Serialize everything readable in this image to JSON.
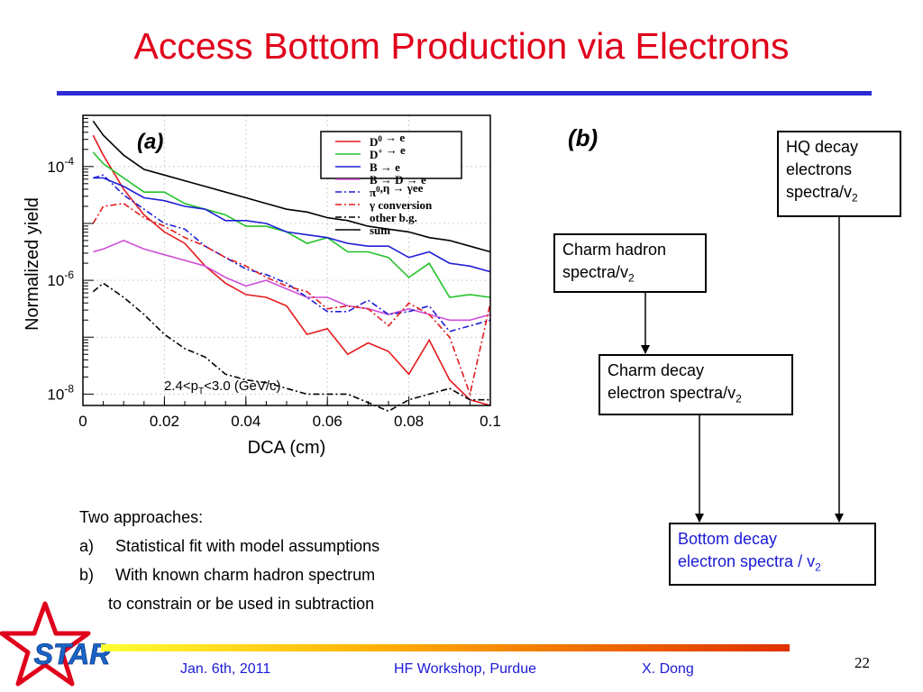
{
  "slide": {
    "title": "Access Bottom Production via Electrons",
    "page_number": "22",
    "footer": {
      "date": "Jan. 6th, 2011",
      "event": "HF Workshop, Purdue",
      "author": "X. Dong"
    },
    "logo_text": "STAR"
  },
  "panel_b": {
    "label": "(b)",
    "boxes": {
      "hq": {
        "line1": "HQ decay",
        "line2": "electrons",
        "line3": "spectra/v",
        "sub": "2"
      },
      "charm_hadron": {
        "line1": "Charm hadron",
        "line2": "spectra/v",
        "sub": "2"
      },
      "charm_decay": {
        "line1": "Charm decay",
        "line2": "electron spectra/v",
        "sub": "2"
      },
      "bottom_decay": {
        "line1": "Bottom decay",
        "line2": "electron spectra / v",
        "sub": "2"
      }
    }
  },
  "approaches": {
    "heading": "Two approaches:",
    "items": [
      {
        "marker": "a)",
        "text": "Statistical fit with model assumptions"
      },
      {
        "marker": "b)",
        "text": "With known charm hadron spectrum"
      }
    ],
    "continuation": "to constrain or be used in subtraction"
  },
  "chart_data": {
    "type": "line",
    "panel_label": "(a)",
    "xlabel": "DCA (cm)",
    "ylabel": "Normalized yield",
    "annotation": {
      "prefix": "2.4<p",
      "sub": "T",
      "suffix": "<3.0 (GeV/c)"
    },
    "xlim": [
      0,
      0.1
    ],
    "ylog": true,
    "ylim_exp": [
      -8.2,
      -3.1
    ],
    "x_ticks": [
      "0",
      "0.02",
      "0.04",
      "0.06",
      "0.08",
      "0.1"
    ],
    "y_ticks": [
      {
        "exp": -4,
        "base": "10",
        "sup": "-4"
      },
      {
        "exp": -6,
        "base": "10",
        "sup": "-6"
      },
      {
        "exp": -8,
        "base": "10",
        "sup": "-8"
      }
    ],
    "legend_position": "top-right",
    "series": [
      {
        "name": "D0 → e",
        "legend": [
          {
            "t": "D"
          },
          {
            "sup": "0"
          },
          {
            "t": " → e"
          }
        ],
        "color": "#e41a1c",
        "dash": "solid",
        "x": [
          0.0025,
          0.005,
          0.01,
          0.015,
          0.02,
          0.025,
          0.03,
          0.035,
          0.04,
          0.045,
          0.05,
          0.055,
          0.06,
          0.065,
          0.07,
          0.075,
          0.08,
          0.085,
          0.09,
          0.095,
          0.1
        ],
        "y_exp": [
          -3.45,
          -3.8,
          -4.4,
          -4.85,
          -5.15,
          -5.35,
          -5.75,
          -6.05,
          -6.25,
          -6.3,
          -6.45,
          -6.95,
          -6.85,
          -7.3,
          -7.1,
          -7.25,
          -7.65,
          -7.05,
          -7.75,
          -8.1,
          -8.2
        ]
      },
      {
        "name": "D+ → e",
        "legend": [
          {
            "t": "D"
          },
          {
            "sup": "+"
          },
          {
            "t": " → e"
          }
        ],
        "color": "#22c22a",
        "dash": "solid",
        "x": [
          0.0025,
          0.005,
          0.01,
          0.015,
          0.02,
          0.025,
          0.03,
          0.035,
          0.04,
          0.045,
          0.05,
          0.055,
          0.06,
          0.065,
          0.07,
          0.075,
          0.08,
          0.085,
          0.09,
          0.095,
          0.1
        ],
        "y_exp": [
          -3.75,
          -3.95,
          -4.2,
          -4.45,
          -4.45,
          -4.65,
          -4.75,
          -4.85,
          -5.05,
          -5.05,
          -5.15,
          -5.35,
          -5.25,
          -5.5,
          -5.5,
          -5.6,
          -5.95,
          -5.7,
          -6.3,
          -6.25,
          -6.3
        ]
      },
      {
        "name": "B → e",
        "legend": [
          {
            "t": "B → e"
          }
        ],
        "color": "#1f1fd6",
        "dash": "solid",
        "x": [
          0.0025,
          0.005,
          0.01,
          0.015,
          0.02,
          0.025,
          0.03,
          0.035,
          0.04,
          0.045,
          0.05,
          0.055,
          0.06,
          0.065,
          0.07,
          0.075,
          0.08,
          0.085,
          0.09,
          0.095,
          0.1
        ],
        "y_exp": [
          -4.2,
          -4.2,
          -4.35,
          -4.55,
          -4.6,
          -4.7,
          -4.75,
          -4.95,
          -4.95,
          -5.0,
          -5.15,
          -5.2,
          -5.25,
          -5.35,
          -5.4,
          -5.4,
          -5.6,
          -5.5,
          -5.7,
          -5.75,
          -5.85
        ]
      },
      {
        "name": "B → D → e",
        "legend": [
          {
            "t": "B → D → e"
          }
        ],
        "color": "#d04fd8",
        "dash": "solid",
        "x": [
          0.0025,
          0.005,
          0.01,
          0.015,
          0.02,
          0.025,
          0.03,
          0.035,
          0.04,
          0.045,
          0.05,
          0.055,
          0.06,
          0.065,
          0.07,
          0.075,
          0.08,
          0.085,
          0.09,
          0.095,
          0.1
        ],
        "y_exp": [
          -5.5,
          -5.45,
          -5.3,
          -5.45,
          -5.55,
          -5.65,
          -5.75,
          -5.95,
          -6.1,
          -6.0,
          -6.15,
          -6.3,
          -6.3,
          -6.45,
          -6.5,
          -6.6,
          -6.5,
          -6.6,
          -6.7,
          -6.7,
          -6.6
        ]
      },
      {
        "name": "π0,η → γee",
        "legend": [
          {
            "t": "π"
          },
          {
            "sup": "0"
          },
          {
            "t": ",η → γee"
          }
        ],
        "color": "#1f1fd6",
        "dash": "dashdot",
        "x": [
          0.0025,
          0.005,
          0.01,
          0.015,
          0.02,
          0.025,
          0.03,
          0.035,
          0.04,
          0.045,
          0.05,
          0.055,
          0.06,
          0.065,
          0.07,
          0.075,
          0.08,
          0.085,
          0.09,
          0.095,
          0.1
        ],
        "y_exp": [
          -4.2,
          -4.15,
          -4.5,
          -4.75,
          -5.0,
          -5.1,
          -5.4,
          -5.6,
          -5.8,
          -5.9,
          -6.05,
          -6.3,
          -6.55,
          -6.55,
          -6.35,
          -6.6,
          -6.55,
          -6.45,
          -6.9,
          -6.8,
          -6.7
        ]
      },
      {
        "name": "γ conversion",
        "legend": [
          {
            "t": "γ conversion"
          }
        ],
        "color": "#e41a1c",
        "dash": "dashdot",
        "x": [
          0.0025,
          0.005,
          0.01,
          0.015,
          0.02,
          0.025,
          0.03,
          0.035,
          0.04,
          0.045,
          0.05,
          0.055,
          0.06,
          0.065,
          0.07,
          0.075,
          0.08,
          0.085,
          0.09,
          0.095,
          0.1
        ],
        "y_exp": [
          -5.0,
          -4.7,
          -4.65,
          -4.9,
          -5.05,
          -5.25,
          -5.4,
          -5.6,
          -5.75,
          -5.95,
          -6.1,
          -6.2,
          -6.5,
          -6.45,
          -6.5,
          -6.8,
          -6.4,
          -6.6,
          -7.0,
          -8.0,
          -6.4
        ]
      },
      {
        "name": "other b.g.",
        "legend": [
          {
            "t": "other b.g."
          }
        ],
        "color": "#000000",
        "dash": "dashdot",
        "x": [
          0.0025,
          0.005,
          0.01,
          0.015,
          0.02,
          0.025,
          0.03,
          0.035,
          0.04,
          0.045,
          0.05,
          0.055,
          0.06,
          0.065,
          0.07,
          0.075,
          0.08,
          0.085,
          0.09,
          0.095,
          0.1
        ],
        "y_exp": [
          -6.2,
          -6.05,
          -6.3,
          -6.6,
          -6.95,
          -7.2,
          -7.35,
          -7.65,
          -7.75,
          -7.8,
          -7.9,
          -8.0,
          -8.0,
          -8.0,
          -8.15,
          -8.3,
          -8.1,
          -8.0,
          -7.9,
          -8.1,
          -8.1
        ]
      },
      {
        "name": "sum",
        "legend": [
          {
            "t": "sum"
          }
        ],
        "color": "#000000",
        "dash": "solid",
        "x": [
          0.0025,
          0.005,
          0.01,
          0.015,
          0.02,
          0.025,
          0.03,
          0.035,
          0.04,
          0.045,
          0.05,
          0.055,
          0.06,
          0.065,
          0.07,
          0.075,
          0.08,
          0.085,
          0.09,
          0.095,
          0.1
        ],
        "y_exp": [
          -3.2,
          -3.45,
          -3.8,
          -4.05,
          -4.15,
          -4.25,
          -4.35,
          -4.45,
          -4.55,
          -4.65,
          -4.75,
          -4.8,
          -4.9,
          -4.95,
          -5.05,
          -5.1,
          -5.15,
          -5.25,
          -5.3,
          -5.4,
          -5.5
        ]
      }
    ]
  }
}
